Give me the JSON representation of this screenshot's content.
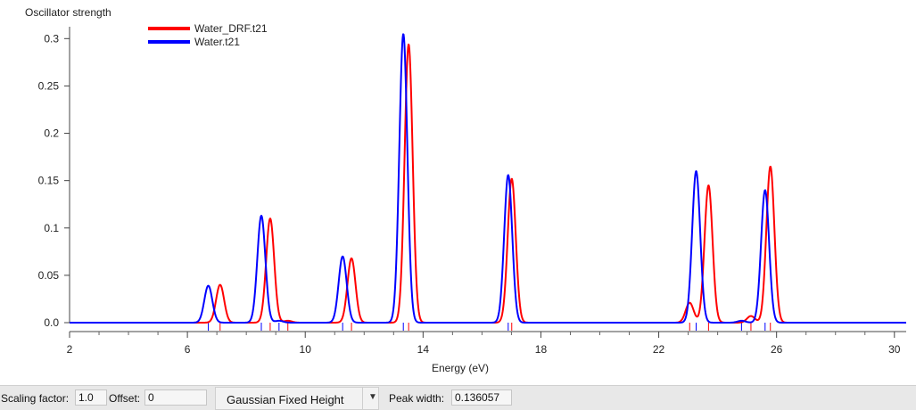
{
  "window": {
    "y_axis_title": "Oscillator strength",
    "x_axis_title": "Energy (eV)"
  },
  "controls": {
    "scaling_label": "Scaling factor:",
    "scaling_value": "1.0",
    "offset_label": "Offset:",
    "offset_value": "0",
    "mode_value": "Gaussian Fixed Height",
    "mode_arrow_icon": "dropdown-arrow-icon",
    "peak_width_label": "Peak width:",
    "peak_width_value": "0.136057"
  },
  "chart_data": {
    "type": "line",
    "title": "",
    "xlabel": "Energy (eV)",
    "ylabel": "Oscillator strength",
    "xlim": [
      2,
      30.4
    ],
    "ylim": [
      0,
      0.305
    ],
    "xticks": [
      2,
      6,
      10,
      14,
      18,
      22,
      26,
      30
    ],
    "yticks": [
      "0.0",
      "0.05",
      "0.1",
      "0.15",
      "0.2",
      "0.25",
      "0.3"
    ],
    "ytick_values": [
      0,
      0.05,
      0.1,
      0.15,
      0.2,
      0.25,
      0.3
    ],
    "grid": false,
    "legend_position": "top-left",
    "peak_width": 0.136057,
    "series": [
      {
        "name": "Water_DRF.t21",
        "color": "#ff0000",
        "peaks": [
          {
            "x": 7.11,
            "y": 0.04
          },
          {
            "x": 8.81,
            "y": 0.11
          },
          {
            "x": 9.41,
            "y": 0.002
          },
          {
            "x": 11.57,
            "y": 0.068
          },
          {
            "x": 13.51,
            "y": 0.294
          },
          {
            "x": 17.01,
            "y": 0.152
          },
          {
            "x": 23.05,
            "y": 0.021
          },
          {
            "x": 23.69,
            "y": 0.145
          },
          {
            "x": 25.13,
            "y": 0.007
          },
          {
            "x": 25.79,
            "y": 0.165
          }
        ]
      },
      {
        "name": "Water.t21",
        "color": "#0000ff",
        "peaks": [
          {
            "x": 6.71,
            "y": 0.039
          },
          {
            "x": 8.51,
            "y": 0.113
          },
          {
            "x": 9.11,
            "y": 0.002
          },
          {
            "x": 11.27,
            "y": 0.07
          },
          {
            "x": 13.33,
            "y": 0.305
          },
          {
            "x": 16.89,
            "y": 0.156
          },
          {
            "x": 23.27,
            "y": 0.16
          },
          {
            "x": 24.81,
            "y": 0.002
          },
          {
            "x": 25.61,
            "y": 0.14
          }
        ]
      }
    ]
  }
}
